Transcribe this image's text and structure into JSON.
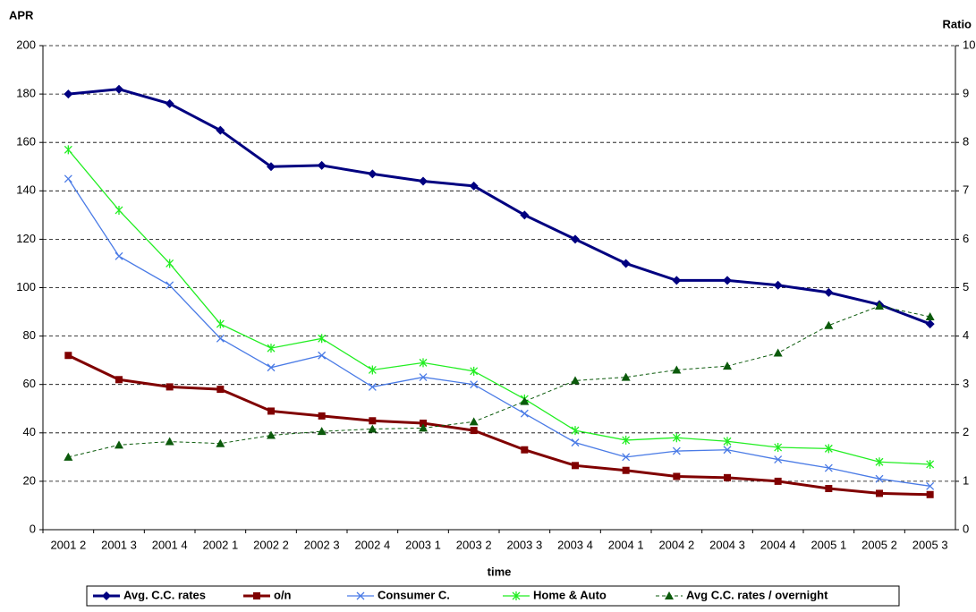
{
  "chart_data": {
    "type": "line",
    "y_label": "APR",
    "y2_label": "Ratio",
    "x_label": "time",
    "categories": [
      "2001 2",
      "2001 3",
      "2001 4",
      "2002 1",
      "2002 2",
      "2002 3",
      "2002 4",
      "2003 1",
      "2003 2",
      "2003 3",
      "2003 4",
      "2004 1",
      "2004 2",
      "2004 3",
      "2004 4",
      "2005 1",
      "2005 2",
      "2005 3"
    ],
    "ylim": [
      0,
      200
    ],
    "yticks": [
      0,
      20,
      40,
      60,
      80,
      100,
      120,
      140,
      160,
      180,
      200
    ],
    "y2lim": [
      0,
      10
    ],
    "y2ticks": [
      0,
      1,
      2,
      3,
      4,
      5,
      6,
      7,
      8,
      9,
      10
    ],
    "grid": true,
    "series": [
      {
        "name": "Avg. C.C. rates",
        "color": "#000080",
        "marker": "diamond",
        "values": [
          180,
          182,
          176,
          165,
          150,
          150.5,
          147,
          144,
          142,
          130,
          120,
          110,
          103,
          103,
          101,
          98,
          93,
          85
        ]
      },
      {
        "name": "o/n",
        "color": "#800000",
        "marker": "square",
        "values": [
          72,
          62,
          59,
          58,
          49,
          47,
          45,
          44,
          41,
          33,
          26.5,
          24.5,
          22,
          21.5,
          20,
          17,
          15,
          14.5
        ]
      },
      {
        "name": "Consumer C.",
        "color": "#4a7be6",
        "marker": "x",
        "values": [
          145,
          113,
          101,
          79,
          67,
          72,
          59,
          63,
          60,
          48,
          36,
          30,
          32.5,
          33,
          29,
          25.5,
          21,
          18
        ]
      },
      {
        "name": "Home & Auto",
        "color": "#22ee22",
        "marker": "star",
        "values": [
          157,
          132,
          110,
          85,
          75,
          79,
          66,
          69,
          65.5,
          54,
          41,
          37,
          38,
          36.5,
          34,
          33.5,
          28,
          27
        ]
      },
      {
        "name": "Avg C.C. rates / overnight",
        "color": "#0b5a0b",
        "marker": "triangle",
        "dashed": true,
        "axis": "y2",
        "values": [
          1.5,
          1.75,
          1.82,
          1.78,
          1.95,
          2.03,
          2.08,
          2.1,
          2.23,
          2.65,
          3.08,
          3.15,
          3.3,
          3.38,
          3.65,
          4.22,
          4.62,
          4.4
        ]
      }
    ]
  }
}
